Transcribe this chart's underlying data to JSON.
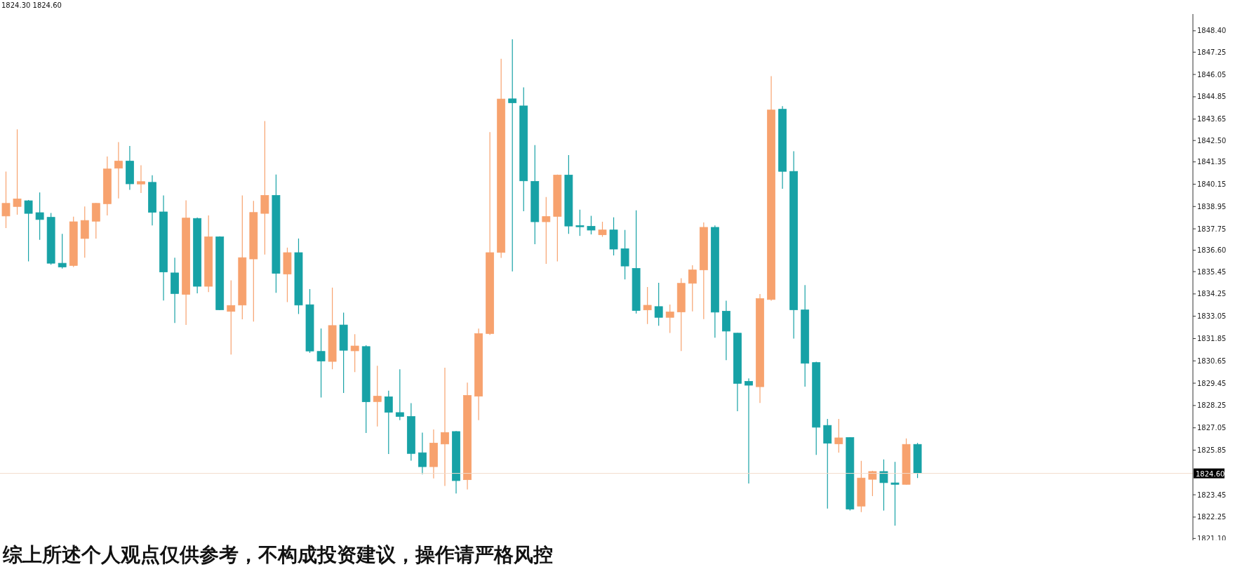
{
  "chart_data": {
    "type": "candlestick",
    "categories": [
      null,
      null,
      null,
      null,
      null,
      null,
      null,
      null,
      null,
      null,
      null,
      null,
      null,
      null,
      null,
      null,
      null,
      null,
      null,
      null,
      null,
      null,
      null,
      null,
      null,
      null,
      null,
      null,
      null,
      null,
      null,
      null,
      null,
      null,
      null,
      null,
      null,
      null,
      null,
      null,
      null,
      null,
      null,
      null,
      null,
      null,
      null,
      null,
      null,
      null,
      null,
      null,
      null,
      null,
      null,
      null,
      null,
      null,
      null,
      null,
      null,
      null,
      null,
      null,
      null,
      null,
      null,
      null,
      null,
      null,
      null,
      null,
      null,
      null,
      null,
      null,
      null,
      null,
      null,
      null,
      null,
      null,
      null,
      null,
      null,
      null,
      null,
      null,
      null,
      null,
      null,
      null,
      null,
      null,
      null,
      null,
      null,
      null,
      null,
      null,
      null,
      null,
      null,
      null,
      null,
      null
    ],
    "ohlc": [
      [
        1838.44,
        1840.83,
        1837.79,
        1839.12
      ],
      [
        1838.95,
        1843.1,
        1838.51,
        1839.36
      ],
      [
        1839.26,
        1839.3,
        1836.0,
        1838.58
      ],
      [
        1838.62,
        1839.71,
        1837.16,
        1838.25
      ],
      [
        1838.37,
        1838.6,
        1835.82,
        1835.9
      ],
      [
        1835.9,
        1837.48,
        1835.61,
        1835.7
      ],
      [
        1835.78,
        1838.4,
        1835.7,
        1838.13
      ],
      [
        1837.23,
        1838.95,
        1836.2,
        1838.2
      ],
      [
        1838.16,
        1839.14,
        1837.23,
        1839.12
      ],
      [
        1839.1,
        1841.64,
        1838.47,
        1840.97
      ],
      [
        1841.01,
        1842.41,
        1839.39,
        1841.39
      ],
      [
        1841.39,
        1842.21,
        1839.85,
        1840.17
      ],
      [
        1840.16,
        1841.17,
        1839.68,
        1840.29
      ],
      [
        1840.25,
        1840.63,
        1837.93,
        1838.64
      ],
      [
        1838.66,
        1839.55,
        1833.9,
        1835.43
      ],
      [
        1835.38,
        1836.2,
        1832.69,
        1834.27
      ],
      [
        1834.23,
        1839.28,
        1832.58,
        1838.33
      ],
      [
        1838.31,
        1838.36,
        1834.28,
        1834.66
      ],
      [
        1834.66,
        1838.47,
        1834.35,
        1837.32
      ],
      [
        1837.32,
        1837.35,
        1833.38,
        1833.4
      ],
      [
        1833.31,
        1834.98,
        1830.99,
        1833.63
      ],
      [
        1833.65,
        1839.55,
        1832.89,
        1836.2
      ],
      [
        1836.13,
        1839.25,
        1832.76,
        1838.63
      ],
      [
        1838.58,
        1843.55,
        1836.37,
        1839.55
      ],
      [
        1839.55,
        1840.67,
        1834.31,
        1835.36
      ],
      [
        1835.32,
        1836.74,
        1833.81,
        1836.47
      ],
      [
        1836.47,
        1837.23,
        1833.17,
        1833.65
      ],
      [
        1833.67,
        1834.51,
        1831.08,
        1831.18
      ],
      [
        1831.16,
        1832.39,
        1828.68,
        1830.64
      ],
      [
        1830.62,
        1834.59,
        1830.2,
        1832.55
      ],
      [
        1832.58,
        1833.24,
        1828.92,
        1831.22
      ],
      [
        1831.19,
        1832.08,
        1830.05,
        1831.45
      ],
      [
        1831.42,
        1831.49,
        1826.77,
        1828.45
      ],
      [
        1828.46,
        1830.39,
        1827.12,
        1828.75
      ],
      [
        1828.72,
        1829.05,
        1825.64,
        1827.89
      ],
      [
        1827.87,
        1830.2,
        1827.46,
        1827.66
      ],
      [
        1827.66,
        1828.38,
        1825.28,
        1825.67
      ],
      [
        1825.71,
        1826.79,
        1824.56,
        1824.96
      ],
      [
        1824.96,
        1826.96,
        1824.33,
        1826.23
      ],
      [
        1826.18,
        1830.28,
        1823.92,
        1826.8
      ],
      [
        1826.85,
        1826.88,
        1823.52,
        1824.21
      ],
      [
        1824.26,
        1829.48,
        1823.74,
        1828.79
      ],
      [
        1828.75,
        1832.39,
        1827.46,
        1832.12
      ],
      [
        1832.12,
        1842.95,
        1832.05,
        1836.47
      ],
      [
        1836.48,
        1846.89,
        1836.19,
        1844.73
      ],
      [
        1844.74,
        1847.94,
        1835.46,
        1844.53
      ],
      [
        1844.36,
        1845.36,
        1838.7,
        1840.33
      ],
      [
        1840.3,
        1842.25,
        1836.92,
        1838.13
      ],
      [
        1838.13,
        1839.46,
        1835.87,
        1838.41
      ],
      [
        1838.42,
        1840.67,
        1836.0,
        1840.64
      ],
      [
        1840.64,
        1841.72,
        1837.48,
        1837.9
      ],
      [
        1837.92,
        1838.78,
        1837.37,
        1837.86
      ],
      [
        1837.89,
        1838.45,
        1837.45,
        1837.68
      ],
      [
        1837.43,
        1838.13,
        1837.32,
        1837.69
      ],
      [
        1837.69,
        1838.37,
        1836.32,
        1836.66
      ],
      [
        1836.68,
        1837.69,
        1835.03,
        1835.75
      ],
      [
        1835.62,
        1838.74,
        1833.2,
        1833.36
      ],
      [
        1833.39,
        1834.62,
        1832.63,
        1833.64
      ],
      [
        1833.57,
        1834.85,
        1832.54,
        1832.99
      ],
      [
        1832.99,
        1833.68,
        1832.15,
        1833.28
      ],
      [
        1833.28,
        1835.09,
        1831.18,
        1834.82
      ],
      [
        1834.82,
        1835.79,
        1833.31,
        1835.54
      ],
      [
        1835.54,
        1838.09,
        1832.9,
        1837.83
      ],
      [
        1837.83,
        1837.93,
        1831.9,
        1833.27
      ],
      [
        1833.32,
        1833.89,
        1830.69,
        1832.25
      ],
      [
        1832.14,
        1832.16,
        1827.94,
        1829.44
      ],
      [
        1829.55,
        1829.71,
        1824.06,
        1829.34
      ],
      [
        1829.26,
        1834.24,
        1828.39,
        1834.0
      ],
      [
        1833.95,
        1845.96,
        1833.89,
        1844.14
      ],
      [
        1844.18,
        1844.35,
        1839.9,
        1840.84
      ],
      [
        1840.84,
        1841.92,
        1831.85,
        1833.4
      ],
      [
        1833.39,
        1834.73,
        1829.26,
        1830.52
      ],
      [
        1830.56,
        1830.6,
        1825.59,
        1827.08
      ],
      [
        1827.18,
        1827.53,
        1822.71,
        1826.22
      ],
      [
        1826.19,
        1827.53,
        1825.72,
        1826.51
      ],
      [
        1826.53,
        1826.55,
        1822.6,
        1822.68
      ],
      [
        1822.84,
        1825.27,
        1822.52,
        1824.35
      ],
      [
        1824.28,
        1824.74,
        1823.38,
        1824.7
      ],
      [
        1824.7,
        1825.35,
        1822.6,
        1824.1
      ],
      [
        1824.09,
        1825.22,
        1821.79,
        1824.01
      ],
      [
        1824.01,
        1826.48,
        1824.0,
        1826.16
      ],
      [
        1826.16,
        1826.24,
        1824.35,
        1824.62
      ],
      null,
      null,
      null,
      null,
      null,
      null,
      null,
      null,
      null,
      null,
      null,
      null,
      null,
      null,
      null,
      null,
      null,
      null,
      null,
      null,
      null,
      null,
      null,
      null
    ],
    "colors": [
      "#f7a26e",
      "#f7a26e",
      "#17a2a6",
      "#17a2a6",
      "#17a2a6",
      "#17a2a6",
      "#f7a26e",
      "#f7a26e",
      "#f7a26e",
      "#f7a26e",
      "#f7a26e",
      "#17a2a6",
      "#f7a26e",
      "#17a2a6",
      "#17a2a6",
      "#17a2a6",
      "#f7a26e",
      "#17a2a6",
      "#f7a26e",
      "#17a2a6",
      "#f7a26e",
      "#f7a26e",
      "#f7a26e",
      "#f7a26e",
      "#17a2a6",
      "#f7a26e",
      "#17a2a6",
      "#17a2a6",
      "#17a2a6",
      "#f7a26e",
      "#17a2a6",
      "#f7a26e",
      "#17a2a6",
      "#f7a26e",
      "#17a2a6",
      "#17a2a6",
      "#17a2a6",
      "#17a2a6",
      "#f7a26e",
      "#f7a26e",
      "#17a2a6",
      "#f7a26e",
      "#f7a26e",
      "#f7a26e",
      "#f7a26e",
      "#17a2a6",
      "#17a2a6",
      "#17a2a6",
      "#f7a26e",
      "#f7a26e",
      "#17a2a6",
      "#17a2a6",
      "#17a2a6",
      "#f7a26e",
      "#17a2a6",
      "#17a2a6",
      "#17a2a6",
      "#f7a26e",
      "#17a2a6",
      "#f7a26e",
      "#f7a26e",
      "#f7a26e",
      "#f7a26e",
      "#17a2a6",
      "#17a2a6",
      "#17a2a6",
      "#17a2a6",
      "#f7a26e",
      "#f7a26e",
      "#17a2a6",
      "#17a2a6",
      "#17a2a6",
      "#17a2a6",
      "#17a2a6",
      "#f7a26e",
      "#17a2a6",
      "#f7a26e",
      "#f7a26e",
      "#17a2a6",
      "#17a2a6",
      "#f7a26e",
      "#17a2a6",
      null,
      null,
      null,
      null,
      null,
      null,
      null,
      null,
      null,
      null,
      null,
      null,
      null,
      null,
      null,
      null,
      null,
      null,
      null,
      null,
      null,
      null,
      null,
      null
    ],
    "ylim": [
      1821.0,
      1849.3
    ],
    "yticks": [
      {
        "value": 1848.4,
        "label": "1848.40"
      },
      {
        "value": 1847.25,
        "label": "1847.25"
      },
      {
        "value": 1846.05,
        "label": "1846.05"
      },
      {
        "value": 1844.85,
        "label": "1844.85"
      },
      {
        "value": 1843.65,
        "label": "1843.65"
      },
      {
        "value": 1842.5,
        "label": "1842.50"
      },
      {
        "value": 1841.35,
        "label": "1841.35"
      },
      {
        "value": 1840.15,
        "label": "1840.15"
      },
      {
        "value": 1838.95,
        "label": "1838.95"
      },
      {
        "value": 1837.75,
        "label": "1837.75"
      },
      {
        "value": 1836.6,
        "label": "1836.60"
      },
      {
        "value": 1835.45,
        "label": "1835.45"
      },
      {
        "value": 1834.25,
        "label": "1834.25"
      },
      {
        "value": 1833.05,
        "label": "1833.05"
      },
      {
        "value": 1831.85,
        "label": "1831.85"
      },
      {
        "value": 1830.65,
        "label": "1830.65"
      },
      {
        "value": 1829.45,
        "label": "1829.45"
      },
      {
        "value": 1828.25,
        "label": "1828.25"
      },
      {
        "value": 1827.05,
        "label": "1827.05"
      },
      {
        "value": 1825.85,
        "label": "1825.85"
      },
      {
        "value": 1823.45,
        "label": "1823.45"
      },
      {
        "value": 1822.25,
        "label": "1822.25"
      },
      {
        "value": 1821.1,
        "label": "1821.10"
      }
    ],
    "ref_lines": [
      {
        "axis": "y",
        "value": 1824.6,
        "label": "1824.60",
        "color": "#f2dccc"
      }
    ],
    "annotations": [
      "1824.30 1824.60",
      "综上所述个人观点仅供参考，不构成投资建议，操作请严格风控"
    ],
    "tick_labels": "y",
    "grid": false,
    "legend": false
  }
}
